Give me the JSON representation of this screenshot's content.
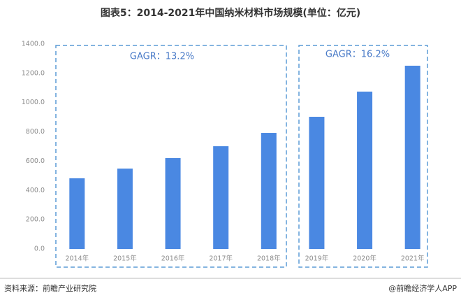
{
  "chart_data": {
    "type": "bar",
    "title": "图表5：2014-2021年中国纳米材料市场规模(单位：亿元)",
    "categories": [
      "2014年",
      "2015年",
      "2016年",
      "2017年",
      "2018年",
      "2019年",
      "2020年",
      "2021年"
    ],
    "values": [
      483,
      549,
      621,
      702,
      793,
      903,
      1075,
      1252
    ],
    "color": "#4a88e2",
    "ylim": [
      0,
      1400
    ],
    "yticks": [
      {
        "value": 0,
        "label": "0.0"
      },
      {
        "value": 200,
        "label": "200.0"
      },
      {
        "value": 400,
        "label": "400.0"
      },
      {
        "value": 600,
        "label": "600.0"
      },
      {
        "value": 800,
        "label": "800.0"
      },
      {
        "value": 1000,
        "label": "1000.0"
      },
      {
        "value": 1200,
        "label": "1200.0"
      },
      {
        "value": 1400,
        "label": "1400.0"
      }
    ],
    "annotations": [
      "GAGR：13.2%",
      "GAGR：16.2%"
    ],
    "source": "资料来源：前瞻产业研究院",
    "credit": "@前瞻经济学人APP"
  }
}
